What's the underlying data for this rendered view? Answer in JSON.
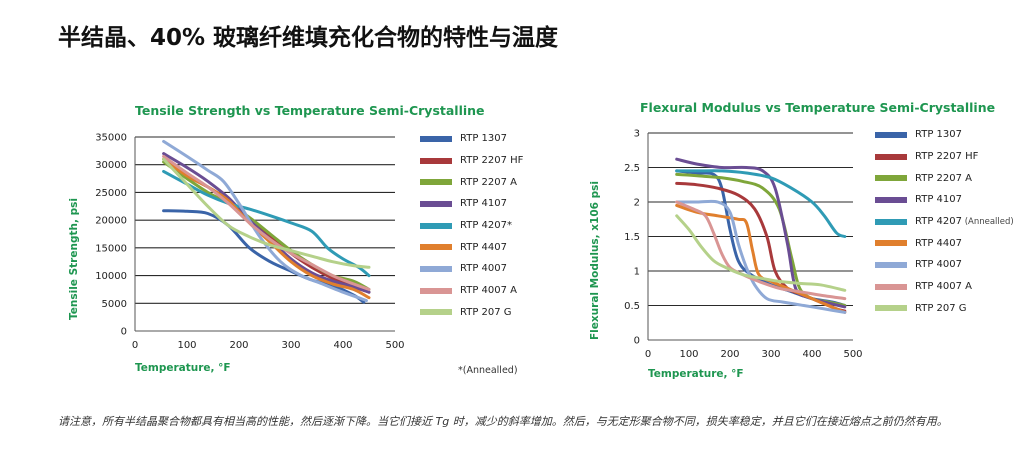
{
  "page": {
    "title": "半结晶、40% 玻璃纤维填充化合物的特性与温度",
    "caption": "请注意，所有半结晶聚合物都具有相当高的性能，然后逐渐下降。当它们接近 Tg 时，减少的斜率增加。然后，与无定形聚合物不同，损失率稳定，并且它们在接近熔点之前仍然有用。"
  },
  "chart_data": [
    {
      "type": "line",
      "title": "Tensile Strength vs Temperature Semi-Crystalline",
      "xlabel": "Temperature, °F",
      "ylabel": "Tensile Strength, psi",
      "xlim": [
        0,
        500
      ],
      "ylim": [
        0,
        35000
      ],
      "xticks": [
        0,
        100,
        200,
        300,
        400,
        500
      ],
      "yticks": [
        0,
        5000,
        10000,
        15000,
        20000,
        25000,
        30000,
        35000
      ],
      "grid": "horizontal",
      "legend_position": "right",
      "footnote": "*(Annealled)",
      "series": [
        {
          "name": "RTP 1307",
          "color": "#3a64a8",
          "points": [
            [
              55,
              21700
            ],
            [
              100,
              21600
            ],
            [
              140,
              21200
            ],
            [
              180,
              19000
            ],
            [
              220,
              15000
            ],
            [
              260,
              12500
            ],
            [
              300,
              10800
            ],
            [
              340,
              9200
            ],
            [
              380,
              8200
            ],
            [
              420,
              6500
            ],
            [
              440,
              5200
            ]
          ]
        },
        {
          "name": "RTP 2207 HF",
          "color": "#a8393b",
          "points": [
            [
              55,
              31000
            ],
            [
              100,
              28000
            ],
            [
              140,
              26000
            ],
            [
              180,
              23500
            ],
            [
              220,
              20000
            ],
            [
              260,
              17000
            ],
            [
              300,
              14000
            ],
            [
              340,
              11500
            ],
            [
              380,
              9500
            ],
            [
              420,
              8000
            ],
            [
              450,
              7000
            ]
          ]
        },
        {
          "name": "RTP 2207 A",
          "color": "#7fa63a",
          "points": [
            [
              55,
              30500
            ],
            [
              100,
              27500
            ],
            [
              140,
              25000
            ],
            [
              180,
              23000
            ],
            [
              220,
              20500
            ],
            [
              260,
              17500
            ],
            [
              300,
              14500
            ],
            [
              340,
              12000
            ],
            [
              380,
              10000
            ],
            [
              420,
              9000
            ],
            [
              450,
              7500
            ]
          ]
        },
        {
          "name": "RTP 4107",
          "color": "#6a4d93",
          "points": [
            [
              55,
              32000
            ],
            [
              100,
              29500
            ],
            [
              140,
              27000
            ],
            [
              180,
              24000
            ],
            [
              220,
              20000
            ],
            [
              260,
              16500
            ],
            [
              300,
              13000
            ],
            [
              340,
              10500
            ],
            [
              380,
              9000
            ],
            [
              420,
              8000
            ],
            [
              450,
              7000
            ]
          ]
        },
        {
          "name": "RTP 4207*",
          "color": "#2f9bb5",
          "points": [
            [
              55,
              28800
            ],
            [
              100,
              26500
            ],
            [
              140,
              24500
            ],
            [
              180,
              23000
            ],
            [
              220,
              22000
            ],
            [
              260,
              20800
            ],
            [
              300,
              19500
            ],
            [
              340,
              18000
            ],
            [
              370,
              15000
            ],
            [
              400,
              13000
            ],
            [
              430,
              11500
            ],
            [
              450,
              10000
            ]
          ]
        },
        {
          "name": "RTP 4407",
          "color": "#e07f2d",
          "points": [
            [
              55,
              31000
            ],
            [
              100,
              28000
            ],
            [
              140,
              26000
            ],
            [
              180,
              23500
            ],
            [
              220,
              19500
            ],
            [
              260,
              16000
            ],
            [
              300,
              12500
            ],
            [
              340,
              10000
            ],
            [
              380,
              8500
            ],
            [
              420,
              7500
            ],
            [
              450,
              6000
            ]
          ]
        },
        {
          "name": "RTP 4007",
          "color": "#8fa9d6",
          "points": [
            [
              55,
              34200
            ],
            [
              100,
              31500
            ],
            [
              140,
              29000
            ],
            [
              170,
              27000
            ],
            [
              200,
              23000
            ],
            [
              240,
              17000
            ],
            [
              280,
              12500
            ],
            [
              320,
              10000
            ],
            [
              360,
              8500
            ],
            [
              400,
              7000
            ],
            [
              430,
              6000
            ],
            [
              445,
              5500
            ]
          ]
        },
        {
          "name": "RTP 4007 A",
          "color": "#d99594",
          "points": [
            [
              55,
              31500
            ],
            [
              100,
              28500
            ],
            [
              140,
              26000
            ],
            [
              180,
              23000
            ],
            [
              220,
              19500
            ],
            [
              260,
              16500
            ],
            [
              300,
              14000
            ],
            [
              340,
              12000
            ],
            [
              380,
              10000
            ],
            [
              420,
              8500
            ],
            [
              450,
              7500
            ]
          ]
        },
        {
          "name": "RTP 207 G",
          "color": "#b5d18a",
          "points": [
            [
              55,
              31000
            ],
            [
              100,
              26500
            ],
            [
              140,
              22500
            ],
            [
              180,
              19000
            ],
            [
              220,
              17000
            ],
            [
              260,
              15500
            ],
            [
              300,
              14500
            ],
            [
              340,
              13500
            ],
            [
              380,
              12500
            ],
            [
              420,
              11800
            ],
            [
              450,
              11500
            ]
          ]
        }
      ]
    },
    {
      "type": "line",
      "title": "Flexural Modulus vs Temperature Semi-Crystalline",
      "xlabel": "Temperature, °F",
      "ylabel": "Flexural Modulus, x106 psi",
      "xlim": [
        0,
        500
      ],
      "ylim": [
        0,
        3
      ],
      "xticks": [
        0,
        100,
        200,
        300,
        400,
        500
      ],
      "yticks": [
        0,
        0.5,
        1,
        1.5,
        2,
        2.5,
        3
      ],
      "grid": "horizontal",
      "legend_position": "right",
      "series": [
        {
          "name": "RTP 1307",
          "color": "#3a64a8",
          "points": [
            [
              70,
              2.45
            ],
            [
              120,
              2.42
            ],
            [
              160,
              2.4
            ],
            [
              180,
              2.2
            ],
            [
              200,
              1.6
            ],
            [
              220,
              1.15
            ],
            [
              250,
              0.95
            ],
            [
              300,
              0.8
            ],
            [
              350,
              0.7
            ],
            [
              400,
              0.6
            ],
            [
              450,
              0.55
            ],
            [
              480,
              0.5
            ]
          ]
        },
        {
          "name": "RTP 2207 HF",
          "color": "#a8393b",
          "points": [
            [
              70,
              2.27
            ],
            [
              120,
              2.25
            ],
            [
              170,
              2.2
            ],
            [
              220,
              2.1
            ],
            [
              260,
              1.9
            ],
            [
              290,
              1.5
            ],
            [
              310,
              1.0
            ],
            [
              340,
              0.75
            ],
            [
              380,
              0.65
            ],
            [
              420,
              0.55
            ],
            [
              460,
              0.45
            ],
            [
              480,
              0.42
            ]
          ]
        },
        {
          "name": "RTP 2207 A",
          "color": "#7fa63a",
          "points": [
            [
              70,
              2.4
            ],
            [
              120,
              2.38
            ],
            [
              180,
              2.35
            ],
            [
              230,
              2.3
            ],
            [
              280,
              2.2
            ],
            [
              320,
              1.9
            ],
            [
              350,
              1.2
            ],
            [
              370,
              0.75
            ],
            [
              400,
              0.6
            ],
            [
              440,
              0.55
            ],
            [
              480,
              0.5
            ]
          ]
        },
        {
          "name": "RTP 4107",
          "color": "#6a4d93",
          "points": [
            [
              70,
              2.62
            ],
            [
              120,
              2.55
            ],
            [
              180,
              2.5
            ],
            [
              240,
              2.5
            ],
            [
              280,
              2.45
            ],
            [
              310,
              2.2
            ],
            [
              340,
              1.4
            ],
            [
              360,
              0.75
            ],
            [
              390,
              0.62
            ],
            [
              430,
              0.55
            ],
            [
              480,
              0.48
            ]
          ]
        },
        {
          "name": "RTP 4207 (Annealled)",
          "label": "RTP 4207",
          "note": "(Annealled)",
          "color": "#2f9bb5",
          "points": [
            [
              70,
              2.45
            ],
            [
              120,
              2.45
            ],
            [
              180,
              2.45
            ],
            [
              240,
              2.42
            ],
            [
              300,
              2.35
            ],
            [
              350,
              2.2
            ],
            [
              400,
              2.0
            ],
            [
              430,
              1.8
            ],
            [
              460,
              1.55
            ],
            [
              480,
              1.5
            ]
          ]
        },
        {
          "name": "RTP 4407",
          "color": "#e07f2d",
          "points": [
            [
              70,
              1.95
            ],
            [
              120,
              1.85
            ],
            [
              170,
              1.8
            ],
            [
              220,
              1.75
            ],
            [
              240,
              1.7
            ],
            [
              255,
              1.3
            ],
            [
              270,
              0.95
            ],
            [
              300,
              0.85
            ],
            [
              340,
              0.75
            ],
            [
              380,
              0.65
            ],
            [
              420,
              0.55
            ],
            [
              460,
              0.45
            ],
            [
              480,
              0.4
            ]
          ]
        },
        {
          "name": "RTP 4007",
          "color": "#8fa9d6",
          "points": [
            [
              70,
              2.0
            ],
            [
              120,
              2.0
            ],
            [
              170,
              2.0
            ],
            [
              200,
              1.85
            ],
            [
              220,
              1.4
            ],
            [
              240,
              1.05
            ],
            [
              260,
              0.8
            ],
            [
              290,
              0.6
            ],
            [
              330,
              0.55
            ],
            [
              380,
              0.5
            ],
            [
              430,
              0.45
            ],
            [
              480,
              0.4
            ]
          ]
        },
        {
          "name": "RTP 4007 A",
          "color": "#d99594",
          "points": [
            [
              70,
              2.0
            ],
            [
              110,
              1.9
            ],
            [
              140,
              1.8
            ],
            [
              160,
              1.55
            ],
            [
              180,
              1.25
            ],
            [
              200,
              1.05
            ],
            [
              230,
              0.95
            ],
            [
              270,
              0.85
            ],
            [
              320,
              0.75
            ],
            [
              370,
              0.7
            ],
            [
              420,
              0.65
            ],
            [
              480,
              0.6
            ]
          ]
        },
        {
          "name": "RTP 207 G",
          "color": "#b5d18a",
          "points": [
            [
              70,
              1.8
            ],
            [
              100,
              1.6
            ],
            [
              130,
              1.35
            ],
            [
              160,
              1.15
            ],
            [
              190,
              1.05
            ],
            [
              230,
              0.95
            ],
            [
              270,
              0.9
            ],
            [
              320,
              0.85
            ],
            [
              370,
              0.82
            ],
            [
              420,
              0.8
            ],
            [
              480,
              0.72
            ]
          ]
        }
      ]
    }
  ]
}
